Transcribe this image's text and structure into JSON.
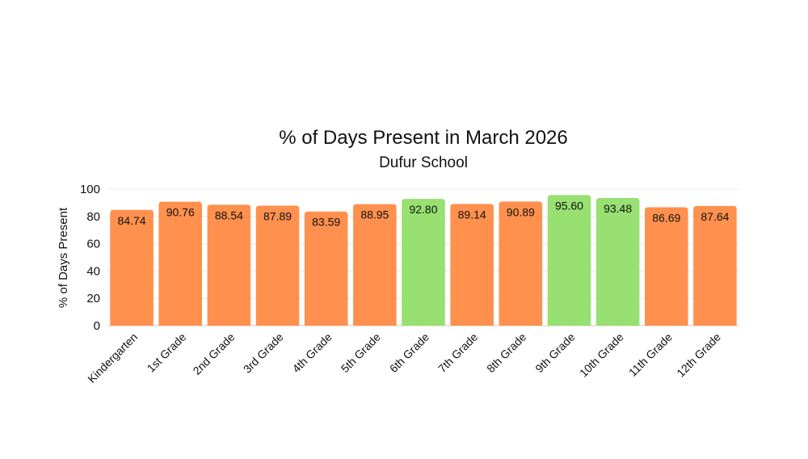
{
  "chart_data": {
    "type": "bar",
    "title": "% of Days Present in March 2026",
    "subtitle": "Dufur School",
    "xlabel": "",
    "ylabel": "% of Days Present",
    "ylim": [
      0,
      100
    ],
    "yticks": [
      0,
      20,
      40,
      60,
      80,
      100
    ],
    "grid": true,
    "legend": "none",
    "categories": [
      "Kindergarten",
      "1st Grade",
      "2nd Grade",
      "3rd Grade",
      "4th Grade",
      "5th Grade",
      "6th Grade",
      "7th Grade",
      "8th Grade",
      "9th Grade",
      "10th Grade",
      "11th Grade",
      "12th Grade"
    ],
    "values": [
      84.74,
      90.76,
      88.54,
      87.89,
      83.59,
      88.95,
      92.8,
      89.14,
      90.89,
      95.6,
      93.48,
      86.69,
      87.64
    ],
    "value_labels": [
      "84.74",
      "90.76",
      "88.54",
      "87.89",
      "83.59",
      "88.95",
      "92.80",
      "89.14",
      "90.89",
      "95.60",
      "93.48",
      "86.69",
      "87.64"
    ],
    "colors": {
      "below_threshold": "#ff904d",
      "above_threshold": "#97e071",
      "gridline": "#e8e8e8",
      "axis": "#cfcfcf"
    },
    "color_threshold": 92
  }
}
